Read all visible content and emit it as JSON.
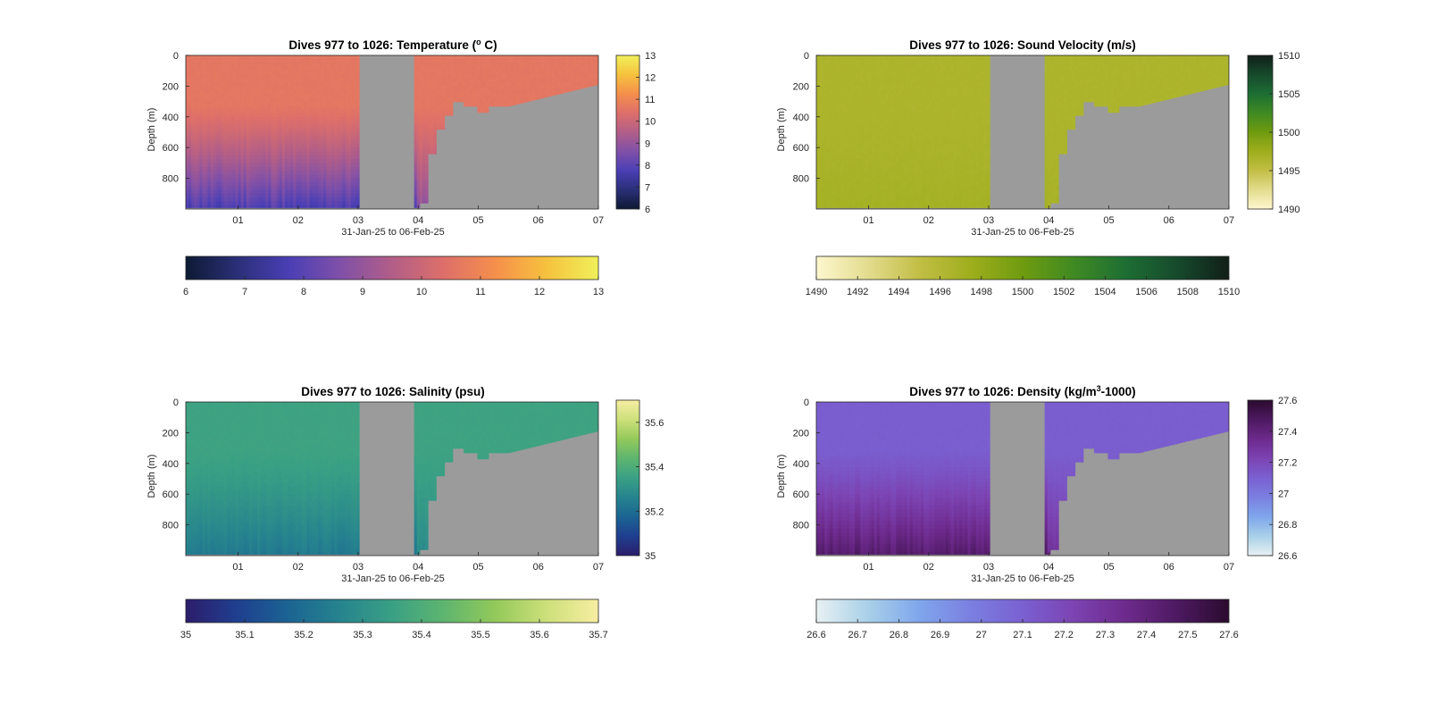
{
  "figure": {
    "background": "#ffffff",
    "mask_color": "#9b9b9b"
  },
  "chart_data": [
    {
      "type": "heatmap",
      "title_prefix": "Dives 977 to 1026: Temperature (",
      "title_sup": "o",
      "title_suffix": " C)",
      "xlabel": "31-Jan-25 to 06-Feb-25",
      "ylabel": "Depth (m)",
      "x_tick_labels": [
        "01",
        "02",
        "03",
        "04",
        "05",
        "06",
        "07"
      ],
      "y_ticks": [
        0,
        200,
        400,
        600,
        800
      ],
      "ylim": [
        0,
        1000
      ],
      "xlim": [
        0.13,
        7.0
      ],
      "variable": "temperature",
      "colorbar_right": {
        "ticks": [
          6,
          7,
          8,
          9,
          10,
          11,
          12,
          13
        ]
      },
      "colorbar_bottom": {
        "ticks": [
          6,
          7,
          8,
          9,
          10,
          11,
          12,
          13
        ]
      },
      "clim": [
        6,
        13
      ],
      "colormap": [
        "#0d1a33",
        "#2b2f78",
        "#4a3fb5",
        "#8050a8",
        "#b25e88",
        "#dd6f6a",
        "#f58f4c",
        "#f6c23e",
        "#f0f05a"
      ],
      "surface_value": 10.6,
      "bottom_value": 7.7,
      "gap_column": [
        3.0,
        3.95
      ]
    },
    {
      "type": "heatmap",
      "title_prefix": "Dives 977 to 1026: Sound Velocity (m/s)",
      "title_sup": "",
      "title_suffix": "",
      "xlabel": "31-Jan-25 to 06-Feb-25",
      "ylabel": "Depth (m)",
      "x_tick_labels": [
        "01",
        "02",
        "03",
        "04",
        "05",
        "06",
        "07"
      ],
      "y_ticks": [
        0,
        200,
        400,
        600,
        800
      ],
      "ylim": [
        0,
        1000
      ],
      "xlim": [
        0.13,
        7.0
      ],
      "variable": "sound_velocity",
      "colorbar_right": {
        "ticks": [
          1490,
          1495,
          1500,
          1505,
          1510
        ]
      },
      "colorbar_bottom": {
        "ticks": [
          1490,
          1492,
          1494,
          1496,
          1498,
          1500,
          1502,
          1504,
          1506,
          1508,
          1510
        ]
      },
      "clim": [
        1490,
        1510
      ],
      "colormap": [
        "#fdf7cf",
        "#e3dc8e",
        "#c2be45",
        "#9eae1c",
        "#6f9b10",
        "#3f8a22",
        "#1d6e34",
        "#164a2c",
        "#111f18"
      ],
      "surface_value": 1496.5,
      "bottom_value": 1497.0,
      "gap_column": [
        3.0,
        3.95
      ]
    },
    {
      "type": "heatmap",
      "title_prefix": "Dives 977 to 1026: Salinity (psu)",
      "title_sup": "",
      "title_suffix": "",
      "xlabel": "31-Jan-25 to 06-Feb-25",
      "ylabel": "Depth (m)",
      "x_tick_labels": [
        "01",
        "02",
        "03",
        "04",
        "05",
        "06",
        "07"
      ],
      "y_ticks": [
        0,
        200,
        400,
        600,
        800
      ],
      "ylim": [
        0,
        1000
      ],
      "xlim": [
        0.13,
        7.0
      ],
      "variable": "salinity",
      "colorbar_right": {
        "ticks": [
          35,
          35.2,
          35.4,
          35.6
        ]
      },
      "colorbar_bottom": {
        "ticks": [
          35,
          35.1,
          35.2,
          35.3,
          35.4,
          35.5,
          35.6,
          35.7
        ]
      },
      "clim": [
        35,
        35.7
      ],
      "colormap": [
        "#2c1d6b",
        "#1f3f8f",
        "#1b6493",
        "#26848e",
        "#3aa084",
        "#5db56f",
        "#93c95a",
        "#cde07a",
        "#f7eea2"
      ],
      "surface_value": 35.36,
      "bottom_value": 35.23,
      "gap_column": [
        3.0,
        3.95
      ]
    },
    {
      "type": "heatmap",
      "title_prefix": "Dives 977 to 1026: Density (kg/m",
      "title_sup": "3",
      "title_suffix": "-1000)",
      "xlabel": "31-Jan-25 to 06-Feb-25",
      "ylabel": "Depth (m)",
      "x_tick_labels": [
        "01",
        "02",
        "03",
        "04",
        "05",
        "06",
        "07"
      ],
      "y_ticks": [
        0,
        200,
        400,
        600,
        800
      ],
      "ylim": [
        0,
        1000
      ],
      "xlim": [
        0.13,
        7.0
      ],
      "variable": "density",
      "colorbar_right": {
        "ticks": [
          26.6,
          26.8,
          27,
          27.2,
          27.4,
          27.6
        ]
      },
      "colorbar_bottom": {
        "ticks": [
          26.6,
          26.7,
          26.8,
          26.9,
          27,
          27.1,
          27.2,
          27.3,
          27.4,
          27.5,
          27.6
        ]
      },
      "clim": [
        26.6,
        27.6
      ],
      "colormap": [
        "#e8f1f3",
        "#a9d0e8",
        "#7fa6ec",
        "#7b7fe0",
        "#7a60d1",
        "#7c43b2",
        "#6d2a8c",
        "#4d1961",
        "#2a0b2e"
      ],
      "surface_value": 27.11,
      "bottom_value": 27.45,
      "gap_column": [
        3.0,
        3.95
      ]
    }
  ]
}
